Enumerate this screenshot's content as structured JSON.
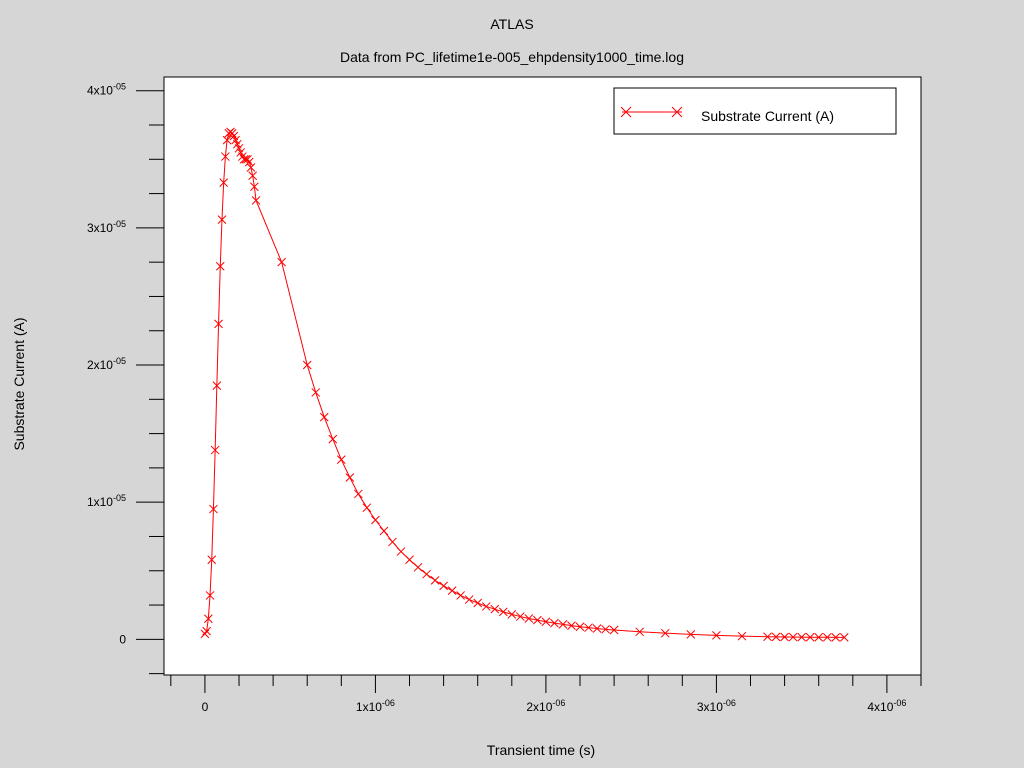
{
  "window": {
    "background": "#d6d6d6"
  },
  "chart_data": {
    "type": "line",
    "title": "ATLAS",
    "subtitle": "Data from PC_lifetime1e-005_ehpdensity1000_time.log",
    "xlabel": "Transient time (s)",
    "ylabel": "Substrate Current (A)",
    "xlim": [
      -2.4e-07,
      4.2e-06
    ],
    "ylim": [
      -2.6e-06,
      4.1e-05
    ],
    "grid": false,
    "legend": {
      "position": "top-right"
    },
    "x_ticks": [
      {
        "value": 0,
        "mantissa": "0",
        "exponent": ""
      },
      {
        "value": 1e-06,
        "mantissa": "1x10",
        "exponent": "-06"
      },
      {
        "value": 2e-06,
        "mantissa": "2x10",
        "exponent": "-06"
      },
      {
        "value": 3e-06,
        "mantissa": "3x10",
        "exponent": "-06"
      },
      {
        "value": 4e-06,
        "mantissa": "4x10",
        "exponent": "-06"
      }
    ],
    "y_ticks": [
      {
        "value": 0,
        "mantissa": "0",
        "exponent": ""
      },
      {
        "value": 1e-05,
        "mantissa": "1x10",
        "exponent": "-05"
      },
      {
        "value": 2e-05,
        "mantissa": "2x10",
        "exponent": "-05"
      },
      {
        "value": 3e-05,
        "mantissa": "3x10",
        "exponent": "-05"
      },
      {
        "value": 4e-05,
        "mantissa": "4x10",
        "exponent": "-05"
      }
    ],
    "series": [
      {
        "name": "Substrate Current (A)",
        "color": "#ff0000",
        "marker": "x",
        "x": [
          0,
          1e-08,
          2e-08,
          3e-08,
          4e-08,
          5e-08,
          6e-08,
          7e-08,
          8e-08,
          9e-08,
          1e-07,
          1.1e-07,
          1.2e-07,
          1.3e-07,
          1.4e-07,
          1.5e-07,
          1.6e-07,
          1.7e-07,
          1.8e-07,
          1.9e-07,
          2e-07,
          2.1e-07,
          2.2e-07,
          2.3e-07,
          2.4e-07,
          2.5e-07,
          2.6e-07,
          2.7e-07,
          2.8e-07,
          2.9e-07,
          3e-07,
          4.5e-07,
          6e-07,
          6.5e-07,
          7e-07,
          7.5e-07,
          8e-07,
          8.5e-07,
          9e-07,
          9.5e-07,
          1e-06,
          1.05e-06,
          1.1e-06,
          1.15e-06,
          1.2e-06,
          1.25e-06,
          1.3e-06,
          1.35e-06,
          1.4e-06,
          1.45e-06,
          1.5e-06,
          1.55e-06,
          1.6e-06,
          1.65e-06,
          1.7e-06,
          1.75e-06,
          1.8e-06,
          1.85e-06,
          1.9e-06,
          1.95e-06,
          2e-06,
          2.05e-06,
          2.1e-06,
          2.15e-06,
          2.2e-06,
          2.25e-06,
          2.3e-06,
          2.35e-06,
          2.4e-06,
          2.55e-06,
          2.7e-06,
          2.85e-06,
          3e-06,
          3.15e-06,
          3.3e-06,
          3.35e-06,
          3.4e-06,
          3.45e-06,
          3.5e-06,
          3.55e-06,
          3.6e-06,
          3.65e-06,
          3.7e-06,
          3.75e-06
        ],
        "y": [
          4e-07,
          6e-07,
          1.5e-06,
          3.2e-06,
          5.8e-06,
          9.5e-06,
          1.38e-05,
          1.85e-05,
          2.3e-05,
          2.72e-05,
          3.06e-05,
          3.33e-05,
          3.52e-05,
          3.64e-05,
          3.69e-05,
          3.7e-05,
          3.69e-05,
          3.67e-05,
          3.64e-05,
          3.61e-05,
          3.58e-05,
          3.55e-05,
          3.52e-05,
          3.5e-05,
          3.5e-05,
          3.5e-05,
          3.48e-05,
          3.44e-05,
          3.38e-05,
          3.3e-05,
          3.2e-05,
          2.75e-05,
          2e-05,
          1.8e-05,
          1.62e-05,
          1.46e-05,
          1.31e-05,
          1.18e-05,
          1.06e-05,
          9.6e-06,
          8.7e-06,
          7.9e-06,
          7.1e-06,
          6.4e-06,
          5.8e-06,
          5.25e-06,
          4.75e-06,
          4.3e-06,
          3.9e-06,
          3.55e-06,
          3.2e-06,
          2.9e-06,
          2.65e-06,
          2.4e-06,
          2.2e-06,
          2e-06,
          1.82e-06,
          1.66e-06,
          1.52e-06,
          1.4e-06,
          1.28e-06,
          1.18e-06,
          1.09e-06,
          1e-06,
          9.2e-07,
          8.5e-07,
          7.9e-07,
          7.3e-07,
          6.8e-07,
          5.5e-07,
          4.5e-07,
          3.6e-07,
          2.9e-07,
          2.3e-07,
          1.9e-07,
          1.8e-07,
          1.7e-07,
          1.65e-07,
          1.6e-07,
          1.55e-07,
          1.5e-07,
          1.48e-07,
          1.45e-07,
          1.42e-07
        ]
      }
    ]
  }
}
